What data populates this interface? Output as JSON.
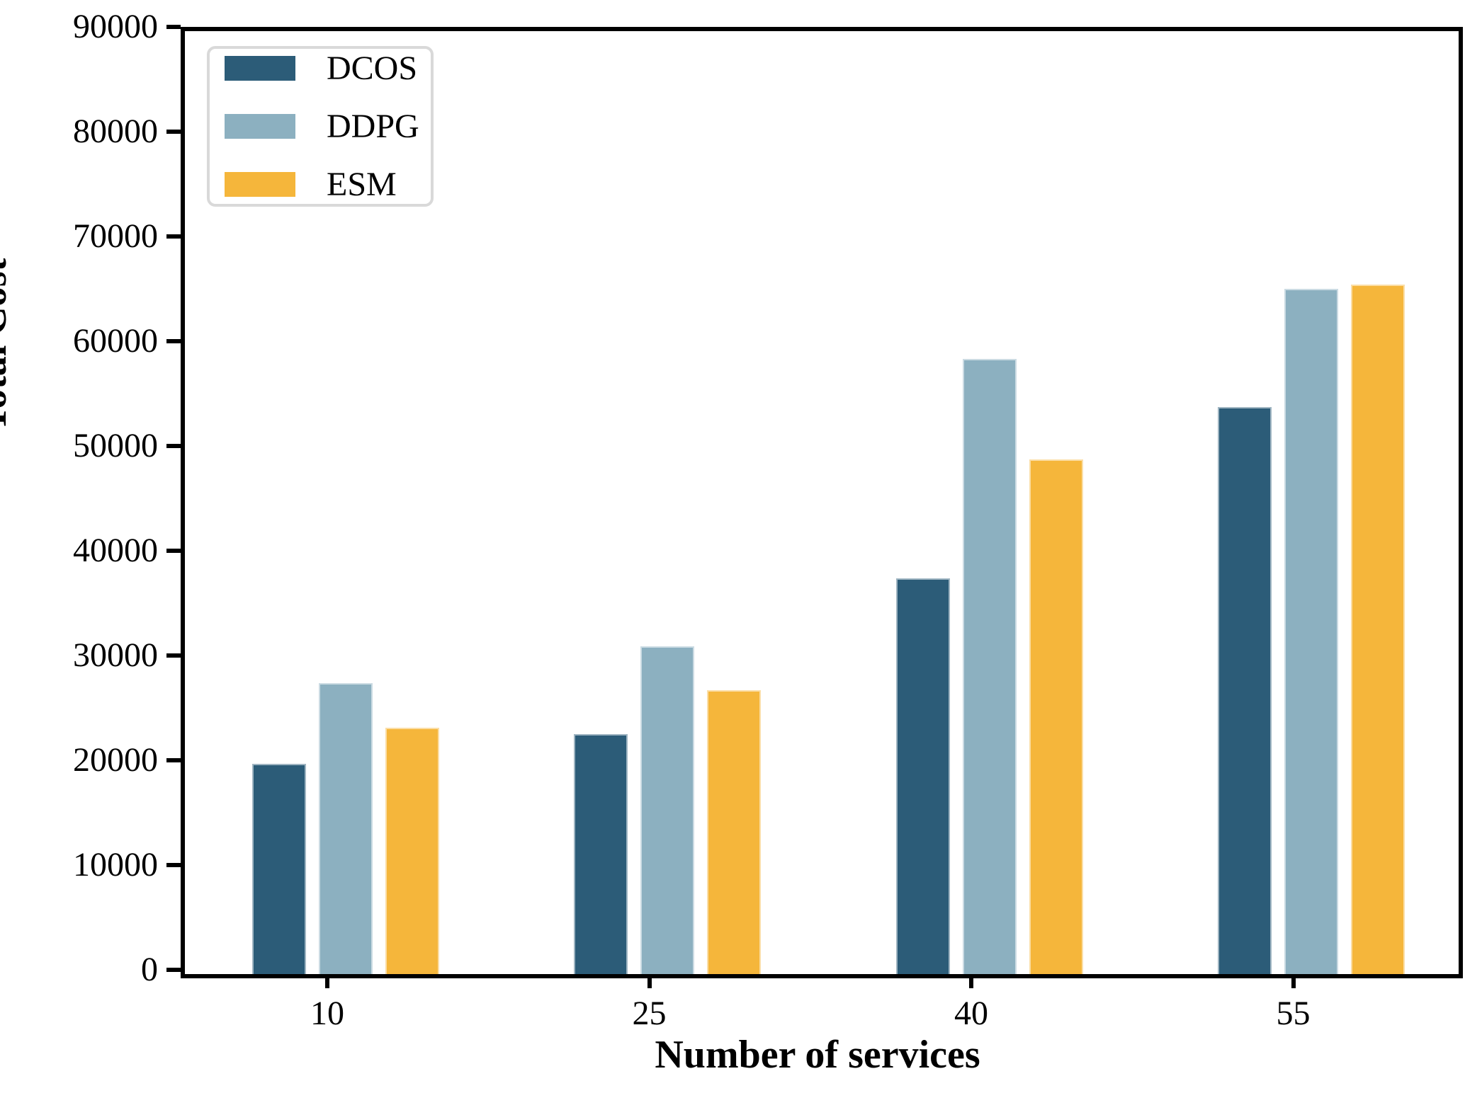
{
  "chart_data": {
    "type": "bar",
    "title": "",
    "xlabel": "Number of services",
    "ylabel": "Total Cost",
    "categories": [
      "10",
      "25",
      "40",
      "55"
    ],
    "series": [
      {
        "name": "DCOS",
        "color": "#2C5C78",
        "values": [
          20100,
          22900,
          37800,
          54100
        ]
      },
      {
        "name": "DDPG",
        "color": "#8CB0C0",
        "values": [
          27800,
          31300,
          58700,
          65400
        ]
      },
      {
        "name": "ESM",
        "color": "#F5B63B",
        "values": [
          23500,
          27100,
          49100,
          65800
        ]
      }
    ],
    "ylim": [
      0,
      90000
    ],
    "yticks": [
      "0",
      "10000",
      "20000",
      "30000",
      "40000",
      "50000",
      "60000",
      "70000",
      "80000",
      "90000"
    ],
    "ytick_step": 10000,
    "legend_position": "upper-left",
    "legend_entries": [
      "DCOS",
      "DDPG",
      "ESM"
    ],
    "grid": false,
    "axis_color": "#000000",
    "background_color": "#ffffff"
  }
}
